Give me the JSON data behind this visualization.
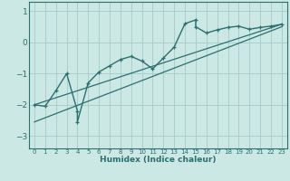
{
  "xlabel": "Humidex (Indice chaleur)",
  "bg_color": "#cce8e4",
  "grid_color": "#aacece",
  "line_color": "#2a7070",
  "xlim": [
    -0.5,
    23.5
  ],
  "ylim": [
    -3.4,
    1.3
  ],
  "yticks": [
    -3,
    -2,
    -1,
    0,
    1
  ],
  "xticks": [
    0,
    1,
    2,
    3,
    4,
    5,
    6,
    7,
    8,
    9,
    10,
    11,
    12,
    13,
    14,
    15,
    16,
    17,
    18,
    19,
    20,
    21,
    22,
    23
  ],
  "line1_x": [
    0,
    1,
    2,
    3,
    4,
    4,
    5,
    6,
    7,
    8,
    9,
    10,
    11,
    12,
    13,
    14,
    15,
    15,
    16,
    17,
    18,
    19,
    20,
    21,
    22,
    23
  ],
  "line1_y": [
    -2.0,
    -2.05,
    -1.55,
    -1.0,
    -2.2,
    -2.55,
    -1.3,
    -0.95,
    -0.75,
    -0.55,
    -0.45,
    -0.6,
    -0.85,
    -0.5,
    -0.15,
    0.6,
    0.72,
    0.5,
    0.3,
    0.4,
    0.48,
    0.52,
    0.42,
    0.48,
    0.52,
    0.58
  ],
  "line2_x": [
    0,
    23
  ],
  "line2_y": [
    -2.0,
    0.58
  ],
  "line3_x": [
    0,
    23
  ],
  "line3_y": [
    -2.55,
    0.5
  ]
}
